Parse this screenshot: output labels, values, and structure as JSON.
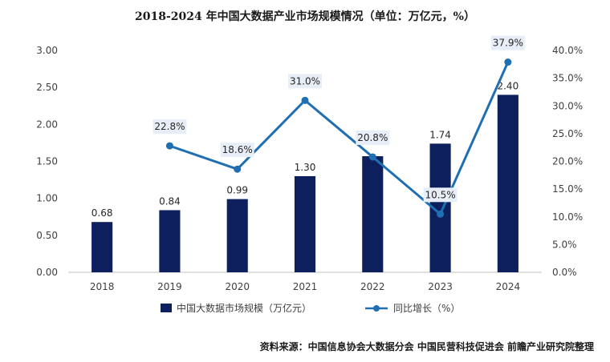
{
  "chart_data": {
    "type": "bar+line",
    "title": "2018-2024 年中国大数据产业市场规模情况（单位：万亿元，%）",
    "categories": [
      "2018",
      "2019",
      "2020",
      "2021",
      "2022",
      "2023",
      "2024"
    ],
    "series": [
      {
        "name": "中国大数据市场规模（万亿元）",
        "type": "bar",
        "axis": "left",
        "values": [
          0.68,
          0.84,
          0.99,
          1.3,
          1.57,
          1.74,
          2.4
        ],
        "labels": [
          "0.68",
          "0.84",
          "0.99",
          "1.30",
          "",
          "1.74",
          "2.40"
        ]
      },
      {
        "name": "同比增长（%）",
        "type": "line",
        "axis": "right",
        "values": [
          null,
          22.8,
          18.6,
          31.0,
          20.8,
          10.5,
          37.9
        ],
        "labels": [
          "",
          "22.8%",
          "18.6%",
          "31.0%",
          "20.8%",
          "10.5%",
          "37.9%"
        ]
      }
    ],
    "left_axis": {
      "ylim": [
        0,
        3.0
      ],
      "ticks": [
        "0.00",
        "0.50",
        "1.00",
        "1.50",
        "2.00",
        "2.50",
        "3.00"
      ]
    },
    "right_axis": {
      "ylim": [
        0,
        40
      ],
      "ticks": [
        "0.0%",
        "5.0%",
        "10.0%",
        "15.0%",
        "20.0%",
        "25.0%",
        "30.0%",
        "35.0%",
        "40.0%"
      ]
    },
    "grid": false,
    "legend_position": "bottom",
    "colors": {
      "bar": "#0d1f5c",
      "line": "#1f6fb2",
      "label_bg": "#e8eef7"
    }
  },
  "source": "资料来源：中国信息协会大数据分会 中国民营科技促进会 前瞻产业研究院整理"
}
